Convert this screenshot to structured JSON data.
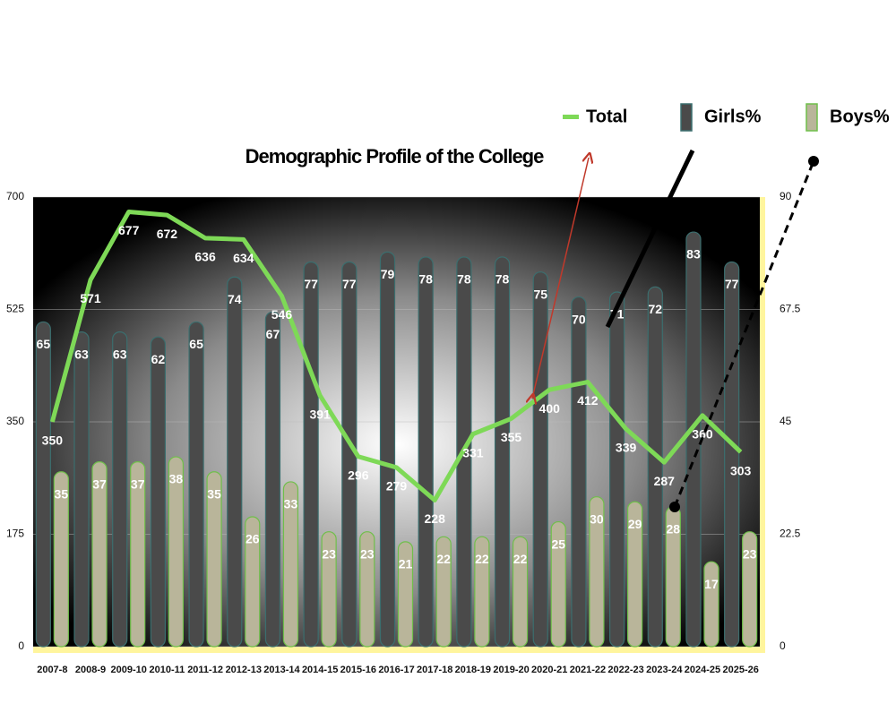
{
  "chart_data": {
    "type": "bar",
    "title": "Demographic Profile of the College",
    "categories": [
      "2007-8",
      "2008-9",
      "2009-10",
      "2010-11",
      "2011-12",
      "2012-13",
      "2013-14",
      "2014-15",
      "2015-16",
      "2016-17",
      "2017-18",
      "2018-19",
      "2019-20",
      "2020-21",
      "2021-22",
      "2022-23",
      "2023-24",
      "2024-25",
      "2025-26"
    ],
    "series": [
      {
        "name": "Total",
        "type": "line",
        "axis": "y",
        "color": "#7ed957",
        "values": [
          350,
          571,
          677,
          672,
          636,
          634,
          546,
          391,
          296,
          279,
          228,
          331,
          355,
          400,
          412,
          339,
          287,
          360,
          303
        ]
      },
      {
        "name": "Girls%",
        "axis": "y2",
        "color": "#4a4a4a",
        "values": [
          65,
          63,
          63,
          62,
          65,
          74,
          67,
          77,
          77,
          79,
          78,
          78,
          78,
          75,
          70,
          71,
          72,
          83,
          77
        ]
      },
      {
        "name": "Boys%",
        "axis": "y2",
        "color": "#b9b59a",
        "values": [
          35,
          37,
          37,
          38,
          35,
          26,
          33,
          23,
          23,
          21,
          22,
          22,
          22,
          25,
          30,
          29,
          28,
          17,
          23
        ]
      }
    ],
    "ylim": [
      0,
      700
    ],
    "yticks": [
      0,
      175,
      350,
      525,
      700
    ],
    "y2lim": [
      0,
      90
    ],
    "y2ticks": [
      0,
      22.5,
      45,
      67.5,
      90
    ],
    "grid": true
  }
}
